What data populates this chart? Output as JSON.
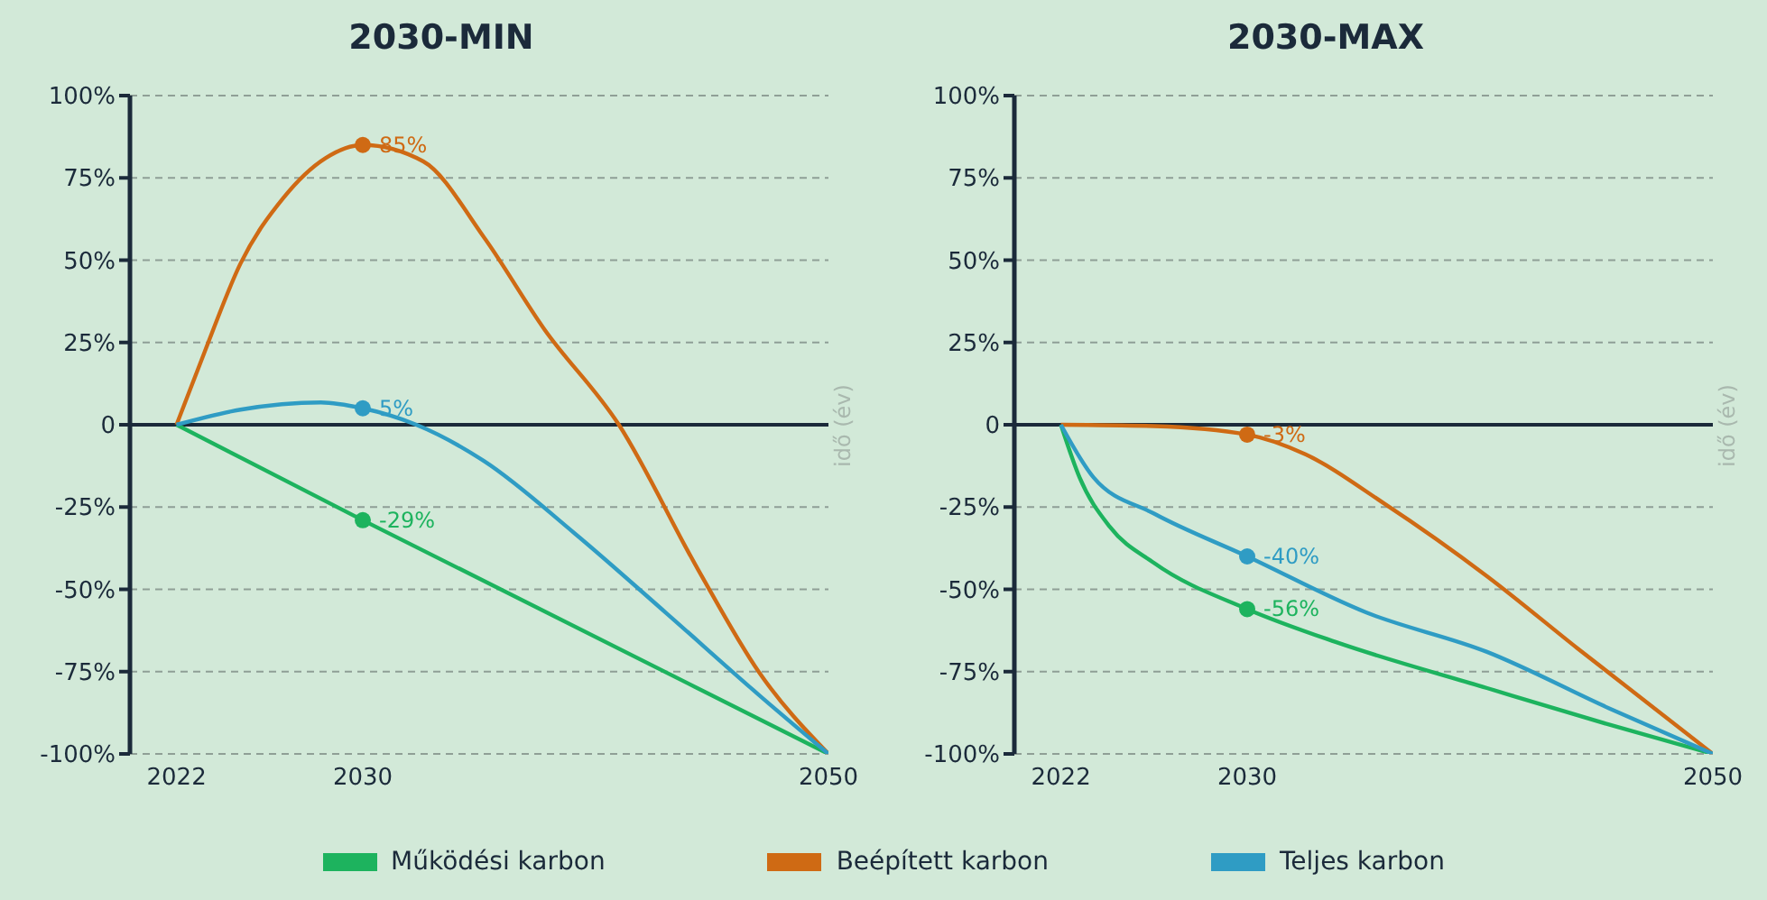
{
  "chart_data": [
    {
      "type": "line",
      "title": "2030-MIN",
      "annotations": [
        "idő (év)"
      ],
      "xlim": [
        2020,
        2050
      ],
      "xticks": [
        2022,
        2030,
        2050
      ],
      "ylim": [
        -100,
        100
      ],
      "yticks": [
        {
          "value": -100,
          "label": "-100%"
        },
        {
          "value": -75,
          "label": "-75%"
        },
        {
          "value": -50,
          "label": "-50%"
        },
        {
          "value": -25,
          "label": "-25%"
        },
        0,
        {
          "value": 25,
          "label": "25%"
        },
        {
          "value": 50,
          "label": "50%"
        },
        {
          "value": 75,
          "label": "75%"
        },
        {
          "value": 100,
          "label": "100%"
        }
      ],
      "grid": "y",
      "legend": "bottom",
      "ref_lines": [
        {
          "axis": "y",
          "value": 0,
          "color": "#1b2a3a"
        }
      ],
      "series": [
        {
          "name": "Működési karbon",
          "color": "#1db35e",
          "x": [
            2022,
            2030,
            2050
          ],
          "values": [
            0,
            -29,
            -100
          ]
        },
        {
          "name": "Beépített karbon",
          "color": "#cf6a14",
          "x": [
            2022,
            2023.2,
            2024.75,
            2026.6,
            2028.4,
            2030,
            2032.6,
            2035.2,
            2037.8,
            2041,
            2044.4,
            2047,
            2050
          ],
          "values": [
            0,
            22,
            49,
            69,
            81,
            85,
            80,
            57,
            29,
            0,
            -44,
            -75,
            -100
          ]
        },
        {
          "name": "Teljes karbon",
          "color": "#2f9cc4",
          "x": [
            2022,
            2024.75,
            2028.2,
            2030,
            2032.3,
            2035.2,
            2039.1,
            2043,
            2047,
            2050
          ],
          "values": [
            0,
            4.6,
            6.8,
            5,
            0,
            -11,
            -33,
            -57,
            -82,
            -100
          ]
        },
        {
          "type": "scatter",
          "color": "#1db35e",
          "x": [
            2030
          ],
          "values": [
            -29
          ],
          "value_labels": [
            "-29%"
          ]
        },
        {
          "type": "scatter",
          "color": "#cf6a14",
          "x": [
            2030
          ],
          "values": [
            85
          ],
          "value_labels": [
            "85%"
          ]
        },
        {
          "type": "scatter",
          "color": "#2f9cc4",
          "x": [
            2030
          ],
          "values": [
            5
          ],
          "value_labels": [
            "5%"
          ]
        }
      ]
    },
    {
      "type": "line",
      "title": "2030-MAX",
      "annotations": [
        "idő (év)"
      ],
      "xlim": [
        2020,
        2050
      ],
      "xticks": [
        2022,
        2030,
        2050
      ],
      "ylim": [
        -100,
        100
      ],
      "yticks": [
        {
          "value": -100,
          "label": "-100%"
        },
        {
          "value": -75,
          "label": "-75%"
        },
        {
          "value": -50,
          "label": "-50%"
        },
        {
          "value": -25,
          "label": "-25%"
        },
        0,
        {
          "value": 25,
          "label": "25%"
        },
        {
          "value": 50,
          "label": "50%"
        },
        {
          "value": 75,
          "label": "75%"
        },
        {
          "value": 100,
          "label": "100%"
        }
      ],
      "grid": "y",
      "ref_lines": [
        {
          "axis": "y",
          "value": 0,
          "color": "#1b2a3a"
        }
      ],
      "series": [
        {
          "color": "#1db35e",
          "x": [
            2022,
            2022.8,
            2024.1,
            2026,
            2030,
            2033.8,
            2040.3,
            2045.5,
            2050
          ],
          "values": [
            0,
            -16,
            -31,
            -42,
            -56,
            -66,
            -80,
            -91,
            -100
          ]
        },
        {
          "color": "#cf6a14",
          "x": [
            2022,
            2026,
            2030,
            2032.5,
            2035.9,
            2040.3,
            2044.2,
            2050
          ],
          "values": [
            0,
            -0.4,
            -3,
            -9,
            -24,
            -46,
            -68,
            -100
          ]
        },
        {
          "color": "#2f9cc4",
          "x": [
            2022,
            2023.4,
            2026,
            2030,
            2035.1,
            2040.3,
            2045.5,
            2050
          ],
          "values": [
            0,
            -16,
            -27,
            -40,
            -57,
            -69,
            -86,
            -100
          ]
        },
        {
          "type": "scatter",
          "color": "#1db35e",
          "x": [
            2030
          ],
          "values": [
            -56
          ],
          "value_labels": [
            "-56%"
          ]
        },
        {
          "type": "scatter",
          "color": "#cf6a14",
          "x": [
            2030
          ],
          "values": [
            -3
          ],
          "value_labels": [
            "-3%"
          ]
        },
        {
          "type": "scatter",
          "color": "#2f9cc4",
          "x": [
            2030
          ],
          "values": [
            -40
          ],
          "value_labels": [
            "-40%"
          ]
        }
      ]
    }
  ]
}
